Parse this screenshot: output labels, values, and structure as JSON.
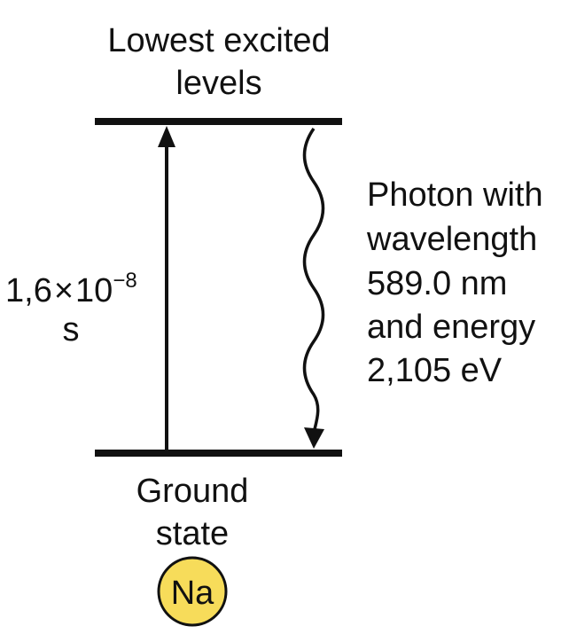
{
  "upper_level": {
    "label_line1": "Lowest excited",
    "label_line2": "levels"
  },
  "lower_level": {
    "label_line1": "Ground",
    "label_line2": "state"
  },
  "lifetime": {
    "mantissa": "1,6",
    "times": "×",
    "base": "10",
    "exponent": "−8",
    "unit": "s"
  },
  "photon": {
    "line1": "Photon with",
    "line2": "wavelength",
    "line3": "589.0 nm",
    "line4": "and energy",
    "line5": "2,105 eV"
  },
  "element_badge": {
    "symbol": "Na"
  },
  "colors": {
    "line": "#111111",
    "badge_fill": "#f7dc5a",
    "badge_stroke": "#111111",
    "text": "#111111"
  }
}
